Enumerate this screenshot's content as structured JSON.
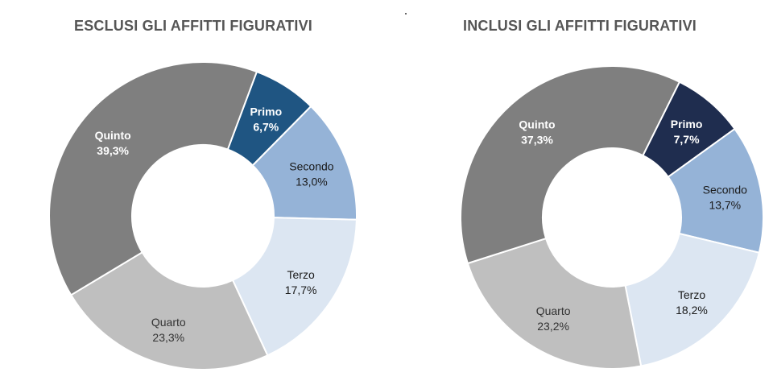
{
  "chart_data": [
    {
      "type": "pie",
      "title": "ESCLUSI GLI AFFITTI FIGURATIVI",
      "donut": true,
      "categories": [
        "Primo",
        "Secondo",
        "Terzo",
        "Quarto",
        "Quinto"
      ],
      "values": [
        6.7,
        13.0,
        17.7,
        23.3,
        39.3
      ],
      "value_labels": [
        "6,7%",
        "13,0%",
        "17,7%",
        "23,3%",
        "39,3%"
      ],
      "colors": [
        "#1f5582",
        "#95b3d7",
        "#dce6f2",
        "#bfbfbf",
        "#7f7f7f"
      ]
    },
    {
      "type": "pie",
      "title": "INCLUSI GLI AFFITTI FIGURATIVI",
      "donut": true,
      "categories": [
        "Primo",
        "Secondo",
        "Terzo",
        "Quarto",
        "Quinto"
      ],
      "values": [
        7.7,
        13.7,
        18.2,
        23.2,
        37.3
      ],
      "value_labels": [
        "7,7%",
        "13,7%",
        "18,2%",
        "23,2%",
        "37,3%"
      ],
      "colors": [
        "#1f2d4f",
        "#95b3d7",
        "#dce6f2",
        "#bfbfbf",
        "#7f7f7f"
      ]
    }
  ]
}
